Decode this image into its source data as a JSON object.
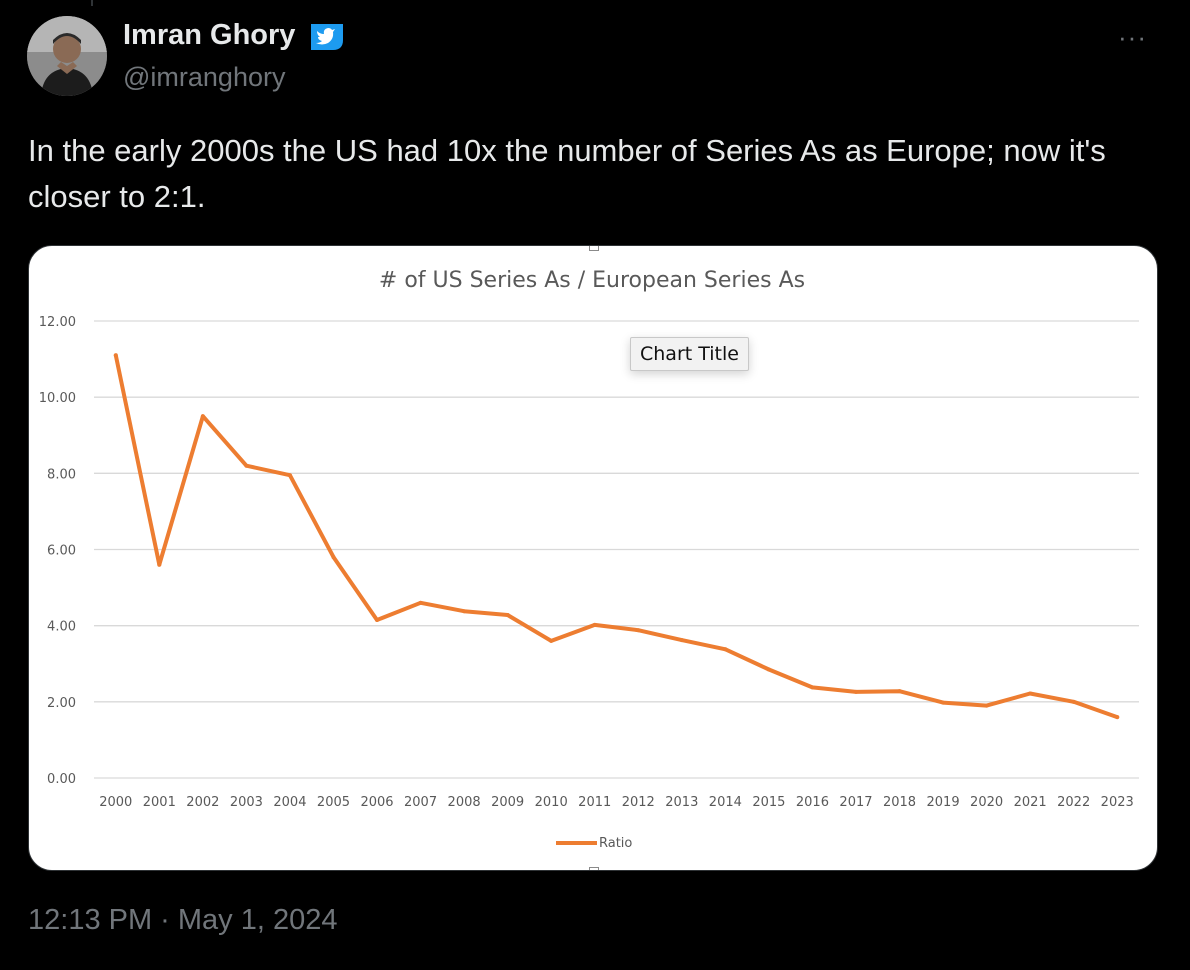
{
  "author": {
    "display_name": "Imran Ghory",
    "handle": "@imranghory",
    "avatar_icon": "person-avatar",
    "verified_icon": "twitter-bird-verified-badge"
  },
  "more_label": "···",
  "tweet_text": "In the early 2000s the US had 10x the number of Series As as Europe; now it's closer to 2:1.",
  "timestamp": "12:13 PM · May 1, 2024",
  "colors": {
    "background": "#000000",
    "text": "#e7e9ea",
    "muted": "#71767b",
    "verified": "#1d9bf0",
    "line": "#ed7d31",
    "grid": "#d9d9d9"
  },
  "chart_tooltip": "Chart Title",
  "chart_data": {
    "type": "line",
    "title": "# of US Series As / European Series As",
    "x": [
      "2000",
      "2001",
      "2002",
      "2003",
      "2004",
      "2005",
      "2006",
      "2007",
      "2008",
      "2009",
      "2010",
      "2011",
      "2012",
      "2013",
      "2014",
      "2015",
      "2016",
      "2017",
      "2018",
      "2019",
      "2020",
      "2021",
      "2022",
      "2023"
    ],
    "series": [
      {
        "name": "Ratio",
        "color": "#ed7d31",
        "values": [
          11.1,
          5.6,
          9.5,
          8.2,
          7.95,
          5.8,
          4.15,
          4.6,
          4.38,
          4.28,
          3.6,
          4.02,
          3.88,
          3.62,
          3.38,
          2.85,
          2.38,
          2.26,
          2.28,
          1.98,
          1.9,
          2.22,
          2.0,
          1.6
        ]
      }
    ],
    "yticks": [
      "0.00",
      "2.00",
      "4.00",
      "6.00",
      "8.00",
      "10.00",
      "12.00"
    ],
    "ylim": [
      0,
      12
    ],
    "grid": true,
    "legend": "bottom"
  }
}
